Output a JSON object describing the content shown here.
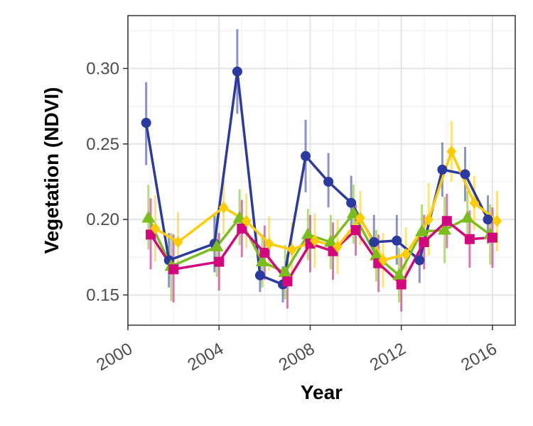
{
  "chart_data": {
    "type": "line",
    "title": "",
    "xlabel": "Year",
    "ylabel": "Vegetation (NDVI)",
    "xlim": [
      2000,
      2017
    ],
    "ylim": [
      0.13,
      0.335
    ],
    "x_ticks": [
      "2000",
      "2004",
      "2008",
      "2012",
      "2016"
    ],
    "y_ticks": [
      "0.15",
      "0.20",
      "0.25",
      "0.30"
    ],
    "grid": true,
    "legend": "none",
    "series": [
      {
        "color": "#2b3a9f",
        "marker": "circle",
        "x": [
          2000.8,
          2001.8,
          2003.8,
          2004.8,
          2005.8,
          2006.8,
          2007.8,
          2008.8,
          2009.8,
          2010.8,
          2011.8,
          2012.8,
          2013.8,
          2014.8,
          2015.8
        ],
        "y": [
          0.264,
          0.173,
          0.184,
          0.298,
          0.163,
          0.157,
          0.242,
          0.225,
          0.211,
          0.185,
          0.186,
          0.173,
          0.233,
          0.23,
          0.2
        ],
        "err_low": [
          0.236,
          0.155,
          0.165,
          0.27,
          0.152,
          0.145,
          0.218,
          0.208,
          0.195,
          0.168,
          0.17,
          0.158,
          0.215,
          0.212,
          0.184
        ],
        "err_high": [
          0.291,
          0.191,
          0.203,
          0.326,
          0.175,
          0.169,
          0.266,
          0.244,
          0.229,
          0.203,
          0.203,
          0.188,
          0.251,
          0.248,
          0.216
        ]
      },
      {
        "color": "#7cbd1e",
        "marker": "triangle",
        "x": [
          2000.9,
          2001.9,
          2003.9,
          2004.9,
          2005.9,
          2006.9,
          2007.9,
          2008.9,
          2009.9,
          2010.9,
          2011.9,
          2012.9,
          2013.9,
          2014.9,
          2015.9
        ],
        "y": [
          0.201,
          0.169,
          0.182,
          0.201,
          0.172,
          0.165,
          0.19,
          0.185,
          0.204,
          0.176,
          0.163,
          0.192,
          0.193,
          0.201,
          0.19
        ],
        "err_low": [
          0.18,
          0.146,
          0.162,
          0.183,
          0.155,
          0.147,
          0.173,
          0.167,
          0.184,
          0.159,
          0.145,
          0.174,
          0.171,
          0.183,
          0.17
        ],
        "err_high": [
          0.223,
          0.191,
          0.202,
          0.22,
          0.19,
          0.183,
          0.207,
          0.203,
          0.223,
          0.193,
          0.181,
          0.21,
          0.215,
          0.219,
          0.21
        ]
      },
      {
        "color": "#d4067e",
        "marker": "square",
        "x": [
          2001.0,
          2002.0,
          2004.0,
          2005.0,
          2006.0,
          2007.0,
          2008.0,
          2009.0,
          2010.0,
          2011.0,
          2012.0,
          2013.0,
          2014.0,
          2015.0,
          2016.0
        ],
        "y": [
          0.19,
          0.167,
          0.172,
          0.194,
          0.178,
          0.159,
          0.184,
          0.179,
          0.193,
          0.171,
          0.157,
          0.185,
          0.199,
          0.187,
          0.188
        ],
        "err_low": [
          0.167,
          0.145,
          0.153,
          0.175,
          0.16,
          0.141,
          0.165,
          0.16,
          0.176,
          0.152,
          0.139,
          0.167,
          0.181,
          0.168,
          0.168
        ],
        "err_high": [
          0.214,
          0.19,
          0.191,
          0.213,
          0.196,
          0.177,
          0.203,
          0.198,
          0.21,
          0.19,
          0.175,
          0.203,
          0.217,
          0.206,
          0.208
        ]
      },
      {
        "color": "#ffcc00",
        "marker": "diamond",
        "x": [
          2001.2,
          2002.2,
          2004.2,
          2005.2,
          2006.2,
          2007.2,
          2008.2,
          2009.2,
          2010.2,
          2011.2,
          2012.2,
          2013.2,
          2014.2,
          2015.2,
          2016.2
        ],
        "y": [
          0.194,
          0.185,
          0.208,
          0.199,
          0.184,
          0.18,
          0.186,
          0.182,
          0.201,
          0.173,
          0.177,
          0.2,
          0.245,
          0.211,
          0.199
        ],
        "err_low": [
          0.172,
          0.165,
          0.19,
          0.181,
          0.166,
          0.162,
          0.168,
          0.164,
          0.183,
          0.155,
          0.159,
          0.176,
          0.225,
          0.193,
          0.179
        ],
        "err_high": [
          0.216,
          0.205,
          0.226,
          0.217,
          0.202,
          0.198,
          0.204,
          0.2,
          0.219,
          0.191,
          0.195,
          0.224,
          0.265,
          0.229,
          0.219
        ]
      }
    ]
  }
}
